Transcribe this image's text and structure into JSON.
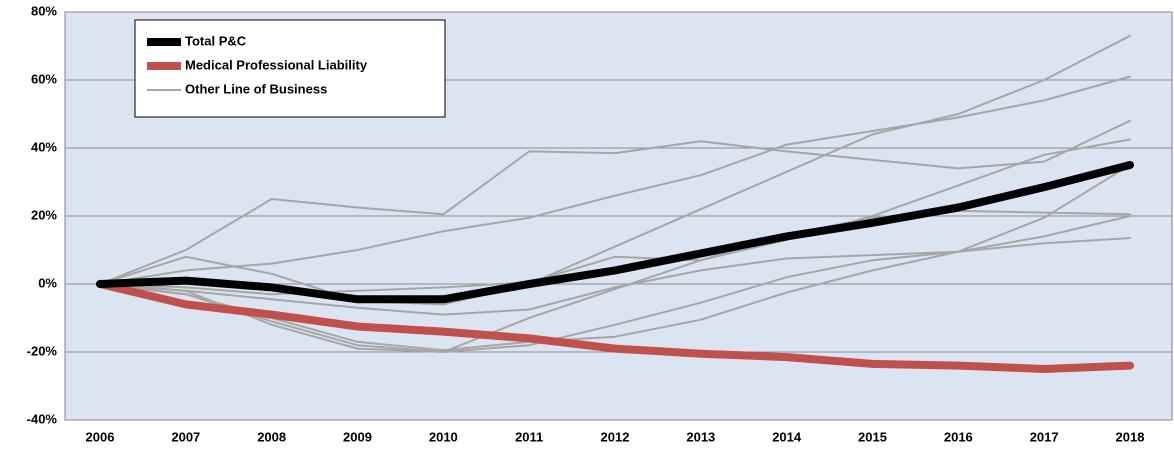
{
  "chart_data": {
    "type": "line",
    "categories": [
      "2006",
      "2007",
      "2008",
      "2009",
      "2010",
      "2011",
      "2012",
      "2013",
      "2014",
      "2015",
      "2016",
      "2017",
      "2018"
    ],
    "ylim": [
      -40,
      80
    ],
    "yticks": [
      {
        "value": -40,
        "label": "-40%"
      },
      {
        "value": -20,
        "label": "-20%"
      },
      {
        "value": 0,
        "label": "0%"
      },
      {
        "value": 20,
        "label": "20%"
      },
      {
        "value": 40,
        "label": "40%"
      },
      {
        "value": 60,
        "label": "60%"
      },
      {
        "value": 80,
        "label": "80%"
      }
    ],
    "grid": true,
    "legend": "upper-left",
    "series": [
      {
        "name": "Total P&C",
        "color": "#000000",
        "values": [
          0,
          1,
          -1,
          -4.5,
          -4.5,
          0,
          4,
          9,
          14,
          18,
          22.5,
          28.5,
          35
        ]
      },
      {
        "name": "Medical Professional Liability",
        "color": "#c0504d",
        "values": [
          0,
          -6,
          -9,
          -12.5,
          -14,
          -16,
          -19,
          -20.5,
          -21.5,
          -23.5,
          -24,
          -25,
          -24
        ]
      },
      {
        "name": "Other Line of Business",
        "color": "#a6a6a6",
        "lines": [
          [
            0,
            10,
            25,
            22.5,
            20.5,
            39,
            38.5,
            42,
            39,
            36.5,
            34,
            36,
            48
          ],
          [
            0,
            4,
            6,
            10,
            15.5,
            19.5,
            26,
            32,
            41,
            45,
            49,
            54,
            61
          ],
          [
            0,
            8,
            3,
            -5,
            -6,
            0,
            11,
            22,
            33,
            44,
            50,
            60,
            73
          ],
          [
            0,
            -2,
            -4.5,
            -7,
            -9,
            -7.5,
            -1,
            4,
            7.5,
            8.5,
            9.5,
            12,
            13.5
          ],
          [
            0,
            -3,
            -11,
            -18,
            -20,
            -10,
            -1.5,
            7,
            14.5,
            19.5,
            21.5,
            21,
            20.5
          ],
          [
            0,
            -2,
            -12,
            -19,
            -20,
            -18,
            -12,
            -5.5,
            2,
            7,
            9.5,
            14,
            20
          ],
          [
            0,
            -3,
            -10,
            -17,
            -19.5,
            -17,
            -15.5,
            -10.5,
            -2.5,
            4,
            9.5,
            19.5,
            35
          ],
          [
            0,
            -1,
            -3,
            -2,
            -1,
            0.5,
            8,
            7,
            13,
            20,
            29,
            38,
            42.5
          ]
        ]
      }
    ]
  }
}
